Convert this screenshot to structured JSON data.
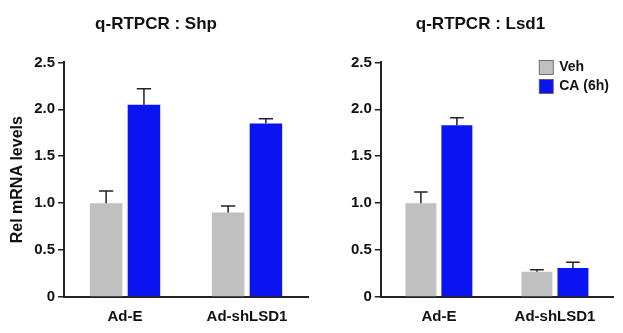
{
  "chart_data": [
    {
      "type": "bar",
      "title": "q-RTPCR : Shp",
      "y_label": "Rel mRNA levels",
      "categories": [
        "Ad-E",
        "Ad-shLSD1"
      ],
      "series": [
        {
          "name": "Veh",
          "color": "#c0c0c0",
          "values": [
            1.0,
            0.9
          ],
          "errors": [
            0.13,
            0.07
          ]
        },
        {
          "name": "CA (6h)",
          "color": "#0a14f0",
          "values": [
            2.05,
            1.85
          ],
          "errors": [
            0.17,
            0.05
          ]
        }
      ],
      "ylim": [
        0,
        2.5
      ],
      "yticks": [
        0,
        0.5,
        {
          "value": 1,
          "label": "1.0"
        },
        1.5,
        {
          "value": 2,
          "label": "2.0"
        },
        2.5
      ],
      "grid": false
    },
    {
      "type": "bar",
      "title": "q-RTPCR : Lsd1",
      "categories": [
        "Ad-E",
        "Ad-shLSD1"
      ],
      "series": [
        {
          "name": "Veh",
          "color": "#c0c0c0",
          "values": [
            1.0,
            0.27
          ],
          "errors": [
            0.12,
            0.02
          ]
        },
        {
          "name": "CA (6h)",
          "color": "#0a14f0",
          "values": [
            1.83,
            0.31
          ],
          "errors": [
            0.08,
            0.06
          ]
        }
      ],
      "ylim": [
        0,
        2.5
      ],
      "yticks": [
        0,
        0.5,
        {
          "value": 1,
          "label": "1.0"
        },
        1.5,
        {
          "value": 2,
          "label": "2.0"
        },
        2.5
      ],
      "grid": false,
      "legend": "upper right"
    }
  ]
}
